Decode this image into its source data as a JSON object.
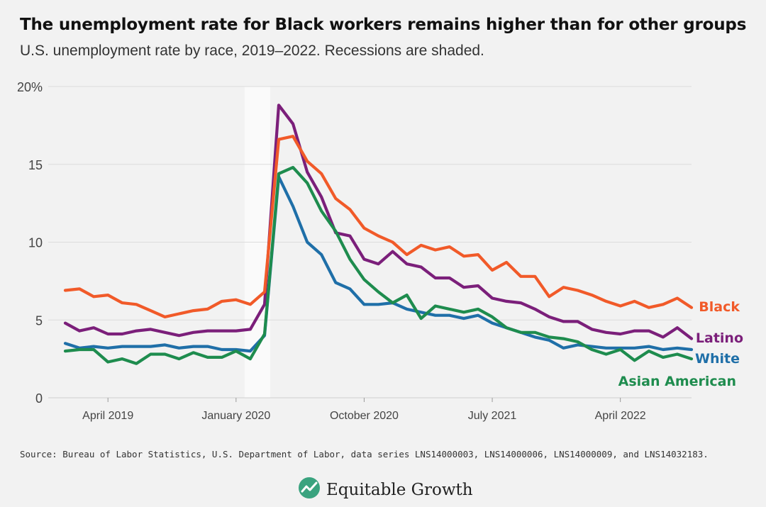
{
  "title": "The unemployment rate for Black workers remains higher than for other groups",
  "subtitle": "U.S. unemployment rate by race, 2019–2022. Recessions are shaded.",
  "source": "Source: Bureau of Labor Statistics, U.S. Department of Labor, data series LNS14000003, LNS14000006, LNS14000009, and LNS14032183.",
  "brand": {
    "name": "Equitable Growth",
    "logo_icon": "leaf-chart-logo-icon",
    "logo_color": "#3aa37f"
  },
  "chart_data": {
    "type": "line",
    "x_start": "2019-01",
    "x_end": "2022-09",
    "x_ticks": [
      {
        "date": "2019-04",
        "label": "April 2019"
      },
      {
        "date": "2020-01",
        "label": "January 2020"
      },
      {
        "date": "2020-10",
        "label": "October 2020"
      },
      {
        "date": "2021-07",
        "label": "July 2021"
      },
      {
        "date": "2022-04",
        "label": "April 2022"
      }
    ],
    "y_ticks": [
      {
        "value": 0,
        "label": "0"
      },
      {
        "value": 5,
        "label": "5"
      },
      {
        "value": 10,
        "label": "10"
      },
      {
        "value": 15,
        "label": "15"
      },
      {
        "value": 20,
        "label": "20%"
      }
    ],
    "ylim": [
      0,
      20
    ],
    "grid": "horizontal",
    "recession": {
      "start": "2020-02",
      "end": "2020-04"
    },
    "series": [
      {
        "name": "Black",
        "color": "#f15a29",
        "values": [
          6.9,
          7.0,
          6.5,
          6.6,
          6.1,
          6.0,
          5.6,
          5.2,
          5.4,
          5.6,
          5.7,
          6.2,
          6.3,
          6.0,
          6.8,
          16.6,
          16.8,
          15.2,
          14.4,
          12.8,
          12.1,
          10.9,
          10.4,
          10.0,
          9.2,
          9.8,
          9.5,
          9.7,
          9.1,
          9.2,
          8.2,
          8.7,
          7.8,
          7.8,
          6.5,
          7.1,
          6.9,
          6.6,
          6.2,
          5.9,
          6.2,
          5.8,
          6.0,
          6.4,
          5.8
        ]
      },
      {
        "name": "Latino",
        "color": "#7b1f7a",
        "values": [
          4.8,
          4.3,
          4.5,
          4.1,
          4.1,
          4.3,
          4.4,
          4.2,
          4.0,
          4.2,
          4.3,
          4.3,
          4.3,
          4.4,
          6.0,
          18.8,
          17.6,
          14.5,
          12.9,
          10.6,
          10.4,
          8.9,
          8.6,
          9.4,
          8.6,
          8.4,
          7.7,
          7.7,
          7.1,
          7.2,
          6.4,
          6.2,
          6.1,
          5.7,
          5.2,
          4.9,
          4.9,
          4.4,
          4.2,
          4.1,
          4.3,
          4.3,
          3.9,
          4.5,
          3.8
        ]
      },
      {
        "name": "White",
        "color": "#1f6fa8",
        "values": [
          3.5,
          3.2,
          3.3,
          3.2,
          3.3,
          3.3,
          3.3,
          3.4,
          3.2,
          3.3,
          3.3,
          3.1,
          3.1,
          3.0,
          4.0,
          14.2,
          12.3,
          10.0,
          9.2,
          7.4,
          7.0,
          6.0,
          6.0,
          6.1,
          5.7,
          5.5,
          5.3,
          5.3,
          5.1,
          5.3,
          4.8,
          4.5,
          4.2,
          3.9,
          3.7,
          3.2,
          3.4,
          3.3,
          3.2,
          3.2,
          3.2,
          3.3,
          3.1,
          3.2,
          3.1
        ]
      },
      {
        "name": "Asian American",
        "color": "#1e8c4e",
        "values": [
          3.0,
          3.1,
          3.1,
          2.3,
          2.5,
          2.2,
          2.8,
          2.8,
          2.5,
          2.9,
          2.6,
          2.6,
          3.0,
          2.5,
          4.1,
          14.4,
          14.8,
          13.8,
          12.0,
          10.7,
          8.9,
          7.6,
          6.8,
          6.1,
          6.6,
          5.1,
          5.9,
          5.7,
          5.5,
          5.7,
          5.2,
          4.5,
          4.2,
          4.2,
          3.9,
          3.8,
          3.6,
          3.1,
          2.8,
          3.1,
          2.4,
          3.0,
          2.6,
          2.8,
          2.5
        ]
      }
    ]
  }
}
